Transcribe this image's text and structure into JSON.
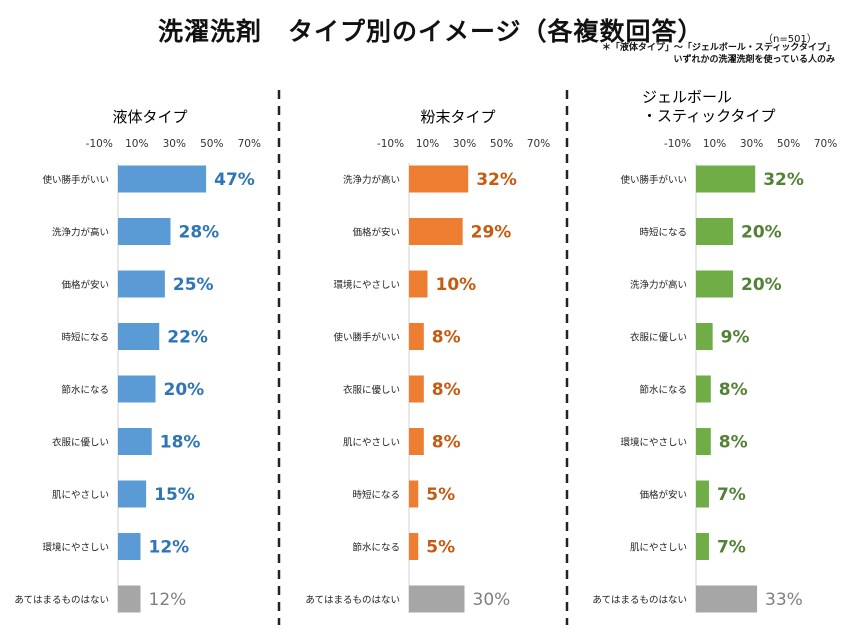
{
  "header": {
    "title": "洗濯洗剤　タイプ別のイメージ（各複数回答）",
    "n_label": "（n=501）",
    "note_line1": "＊「液体タイプ」～「ジェルボール・スティックタイプ」",
    "note_line2": "いずれかの洗濯洗剤を使っている人のみ"
  },
  "chart_data": [
    {
      "type": "bar",
      "orientation": "horizontal",
      "title": "液体タイプ",
      "color": "#5b9bd5",
      "none_color": "#a6a6a6",
      "value_color": "#2e75b6",
      "none_value_color": "#7f7f7f",
      "ticks": [
        "-10%",
        "10%",
        "30%",
        "50%",
        "70%"
      ],
      "xlim": [
        -10,
        70
      ],
      "categories": [
        "使い勝手がいい",
        "洗浄力が高い",
        "価格が安い",
        "時短になる",
        "節水になる",
        "衣服に優しい",
        "肌にやさしい",
        "環境にやさしい",
        "あてはまるものはない"
      ],
      "values": [
        47,
        28,
        25,
        22,
        20,
        18,
        15,
        12,
        12
      ],
      "labels": [
        "47%",
        "28%",
        "25%",
        "22%",
        "20%",
        "18%",
        "15%",
        "12%",
        "12%"
      ]
    },
    {
      "type": "bar",
      "orientation": "horizontal",
      "title": "粉末タイプ",
      "color": "#ed7d31",
      "none_color": "#a6a6a6",
      "value_color": "#c55a11",
      "none_value_color": "#7f7f7f",
      "ticks": [
        "-10%",
        "10%",
        "30%",
        "50%",
        "70%"
      ],
      "xlim": [
        -10,
        70
      ],
      "categories": [
        "洗浄力が高い",
        "価格が安い",
        "環境にやさしい",
        "使い勝手がいい",
        "衣服に優しい",
        "肌にやさしい",
        "時短になる",
        "節水になる",
        "あてはまるものはない"
      ],
      "values": [
        32,
        29,
        10,
        8,
        8,
        8,
        5,
        5,
        30
      ],
      "labels": [
        "32%",
        "29%",
        "10%",
        "8%",
        "8%",
        "8%",
        "5%",
        "5%",
        "30%"
      ]
    },
    {
      "type": "bar",
      "orientation": "horizontal",
      "title_line1": "ジェルボール",
      "title_line2": "・スティックタイプ",
      "color": "#70ad47",
      "none_color": "#a6a6a6",
      "value_color": "#538135",
      "none_value_color": "#7f7f7f",
      "ticks": [
        "-10%",
        "10%",
        "30%",
        "50%",
        "70%"
      ],
      "xlim": [
        -10,
        70
      ],
      "categories": [
        "使い勝手がいい",
        "時短になる",
        "洗浄力が高い",
        "衣服に優しい",
        "節水になる",
        "環境にやさしい",
        "価格が安い",
        "肌にやさしい",
        "あてはまるものはない"
      ],
      "values": [
        32,
        20,
        20,
        9,
        8,
        8,
        7,
        7,
        33
      ],
      "labels": [
        "32%",
        "20%",
        "20%",
        "9%",
        "8%",
        "8%",
        "7%",
        "7%",
        "33%"
      ]
    }
  ]
}
